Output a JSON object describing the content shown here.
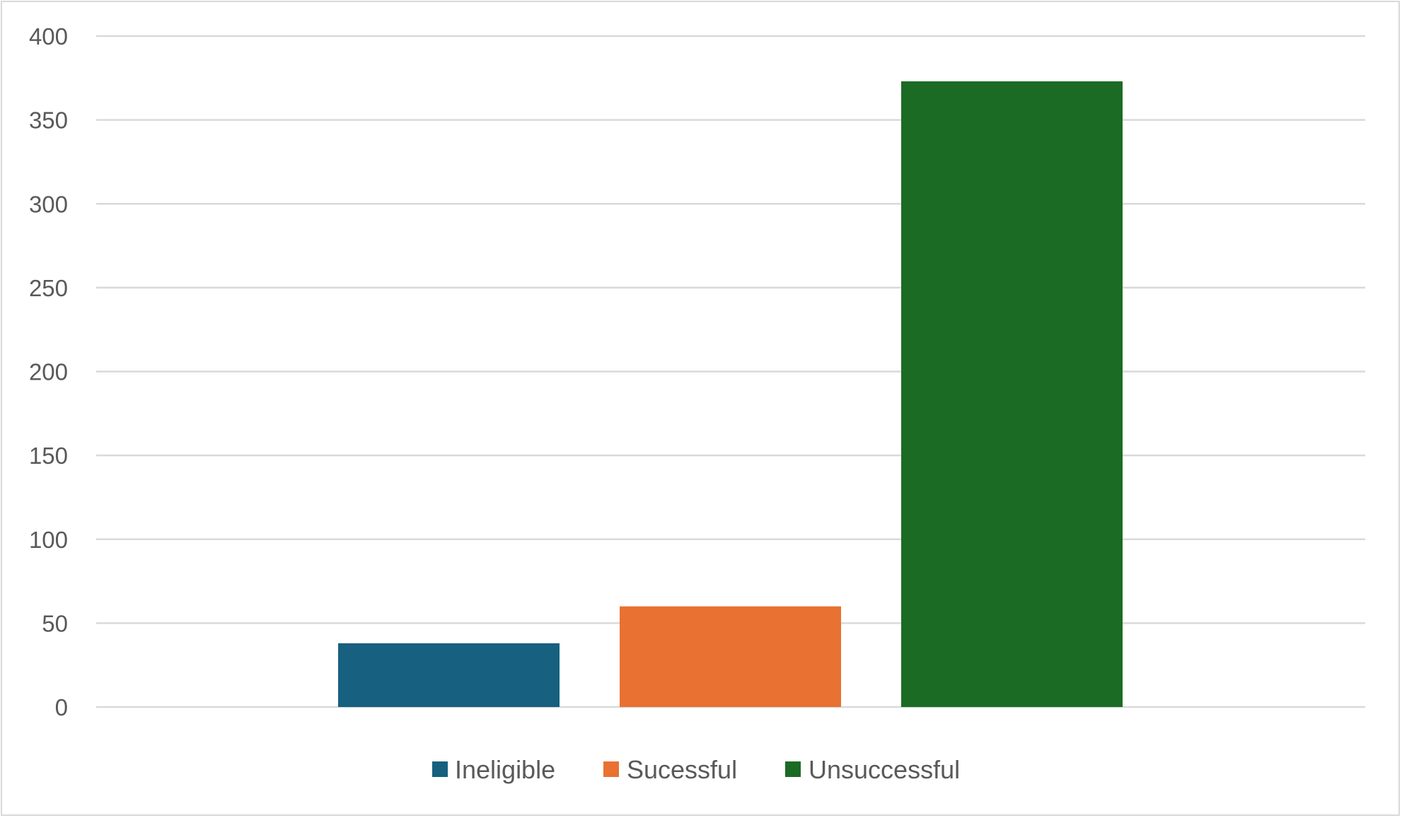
{
  "chart_data": {
    "type": "bar",
    "title": "",
    "xlabel": "",
    "ylabel": "",
    "ylim": [
      0,
      400
    ],
    "y_ticks": [
      0,
      50,
      100,
      150,
      200,
      250,
      300,
      350,
      400
    ],
    "grid": true,
    "legend_position": "bottom",
    "series": [
      {
        "name": "Ineligible",
        "value": 38,
        "color": "#17607f"
      },
      {
        "name": "Sucessful",
        "value": 60,
        "color": "#e97132"
      },
      {
        "name": "Unsuccessful",
        "value": 373,
        "color": "#1b6b24"
      }
    ]
  }
}
